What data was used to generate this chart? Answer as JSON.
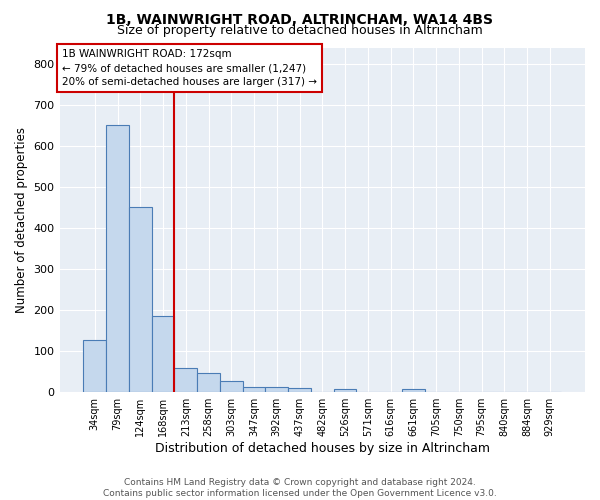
{
  "title1": "1B, WAINWRIGHT ROAD, ALTRINCHAM, WA14 4BS",
  "title2": "Size of property relative to detached houses in Altrincham",
  "xlabel": "Distribution of detached houses by size in Altrincham",
  "ylabel": "Number of detached properties",
  "footnote1": "Contains HM Land Registry data © Crown copyright and database right 2024.",
  "footnote2": "Contains public sector information licensed under the Open Government Licence v3.0.",
  "categories": [
    "34sqm",
    "79sqm",
    "124sqm",
    "168sqm",
    "213sqm",
    "258sqm",
    "303sqm",
    "347sqm",
    "392sqm",
    "437sqm",
    "482sqm",
    "526sqm",
    "571sqm",
    "616sqm",
    "661sqm",
    "705sqm",
    "750sqm",
    "795sqm",
    "840sqm",
    "884sqm",
    "929sqm"
  ],
  "values": [
    127,
    652,
    452,
    185,
    60,
    46,
    28,
    12,
    13,
    10,
    0,
    8,
    0,
    0,
    9,
    0,
    0,
    0,
    0,
    0,
    0
  ],
  "bar_color": "#c5d8ed",
  "bar_edge_color": "#4a7cb5",
  "red_line_x": 3.5,
  "red_line_color": "#cc0000",
  "annotation_line1": "1B WAINWRIGHT ROAD: 172sqm",
  "annotation_line2": "← 79% of detached houses are smaller (1,247)",
  "annotation_line3": "20% of semi-detached houses are larger (317) →",
  "annotation_box_color": "#ffffff",
  "annotation_box_edge": "#cc0000",
  "ylim": [
    0,
    840
  ],
  "yticks": [
    0,
    100,
    200,
    300,
    400,
    500,
    600,
    700,
    800
  ],
  "plot_bg_color": "#e8eef5",
  "title1_fontsize": 10,
  "title2_fontsize": 9,
  "ylabel_fontsize": 8.5,
  "xlabel_fontsize": 9,
  "tick_fontsize": 8,
  "xtick_fontsize": 7,
  "annot_fontsize": 7.5,
  "footnote_fontsize": 6.5,
  "footnote_color": "#555555"
}
